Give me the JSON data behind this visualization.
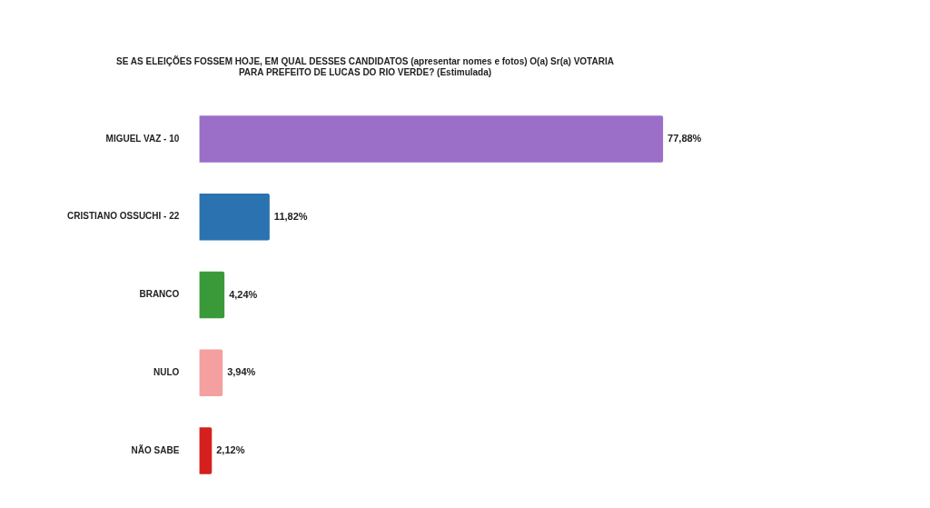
{
  "chart_data": {
    "type": "bar",
    "orientation": "horizontal",
    "title": "SE AS ELEIÇÕES FOSSEM HOJE, EM QUAL DESSES CANDIDATOS (apresentar nomes e fotos) O(a) Sr(a) VOTARIA\nPARA PREFEITO DE LUCAS DO RIO VERDE? (Estimulada)",
    "categories": [
      "MIGUEL VAZ - 10",
      "CRISTIANO OSSUCHI - 22",
      "BRANCO",
      "NULO",
      "NÃO SABE"
    ],
    "values": [
      77.88,
      11.82,
      4.24,
      3.94,
      2.12
    ],
    "colors": [
      "#9b6fc8",
      "#2b72b0",
      "#3a9a3a",
      "#f4a0a0",
      "#d62020"
    ],
    "value_labels": [
      "77,88%",
      "11,82%",
      "4,24%",
      "3,94%",
      "2,12%"
    ],
    "legend": false
  }
}
